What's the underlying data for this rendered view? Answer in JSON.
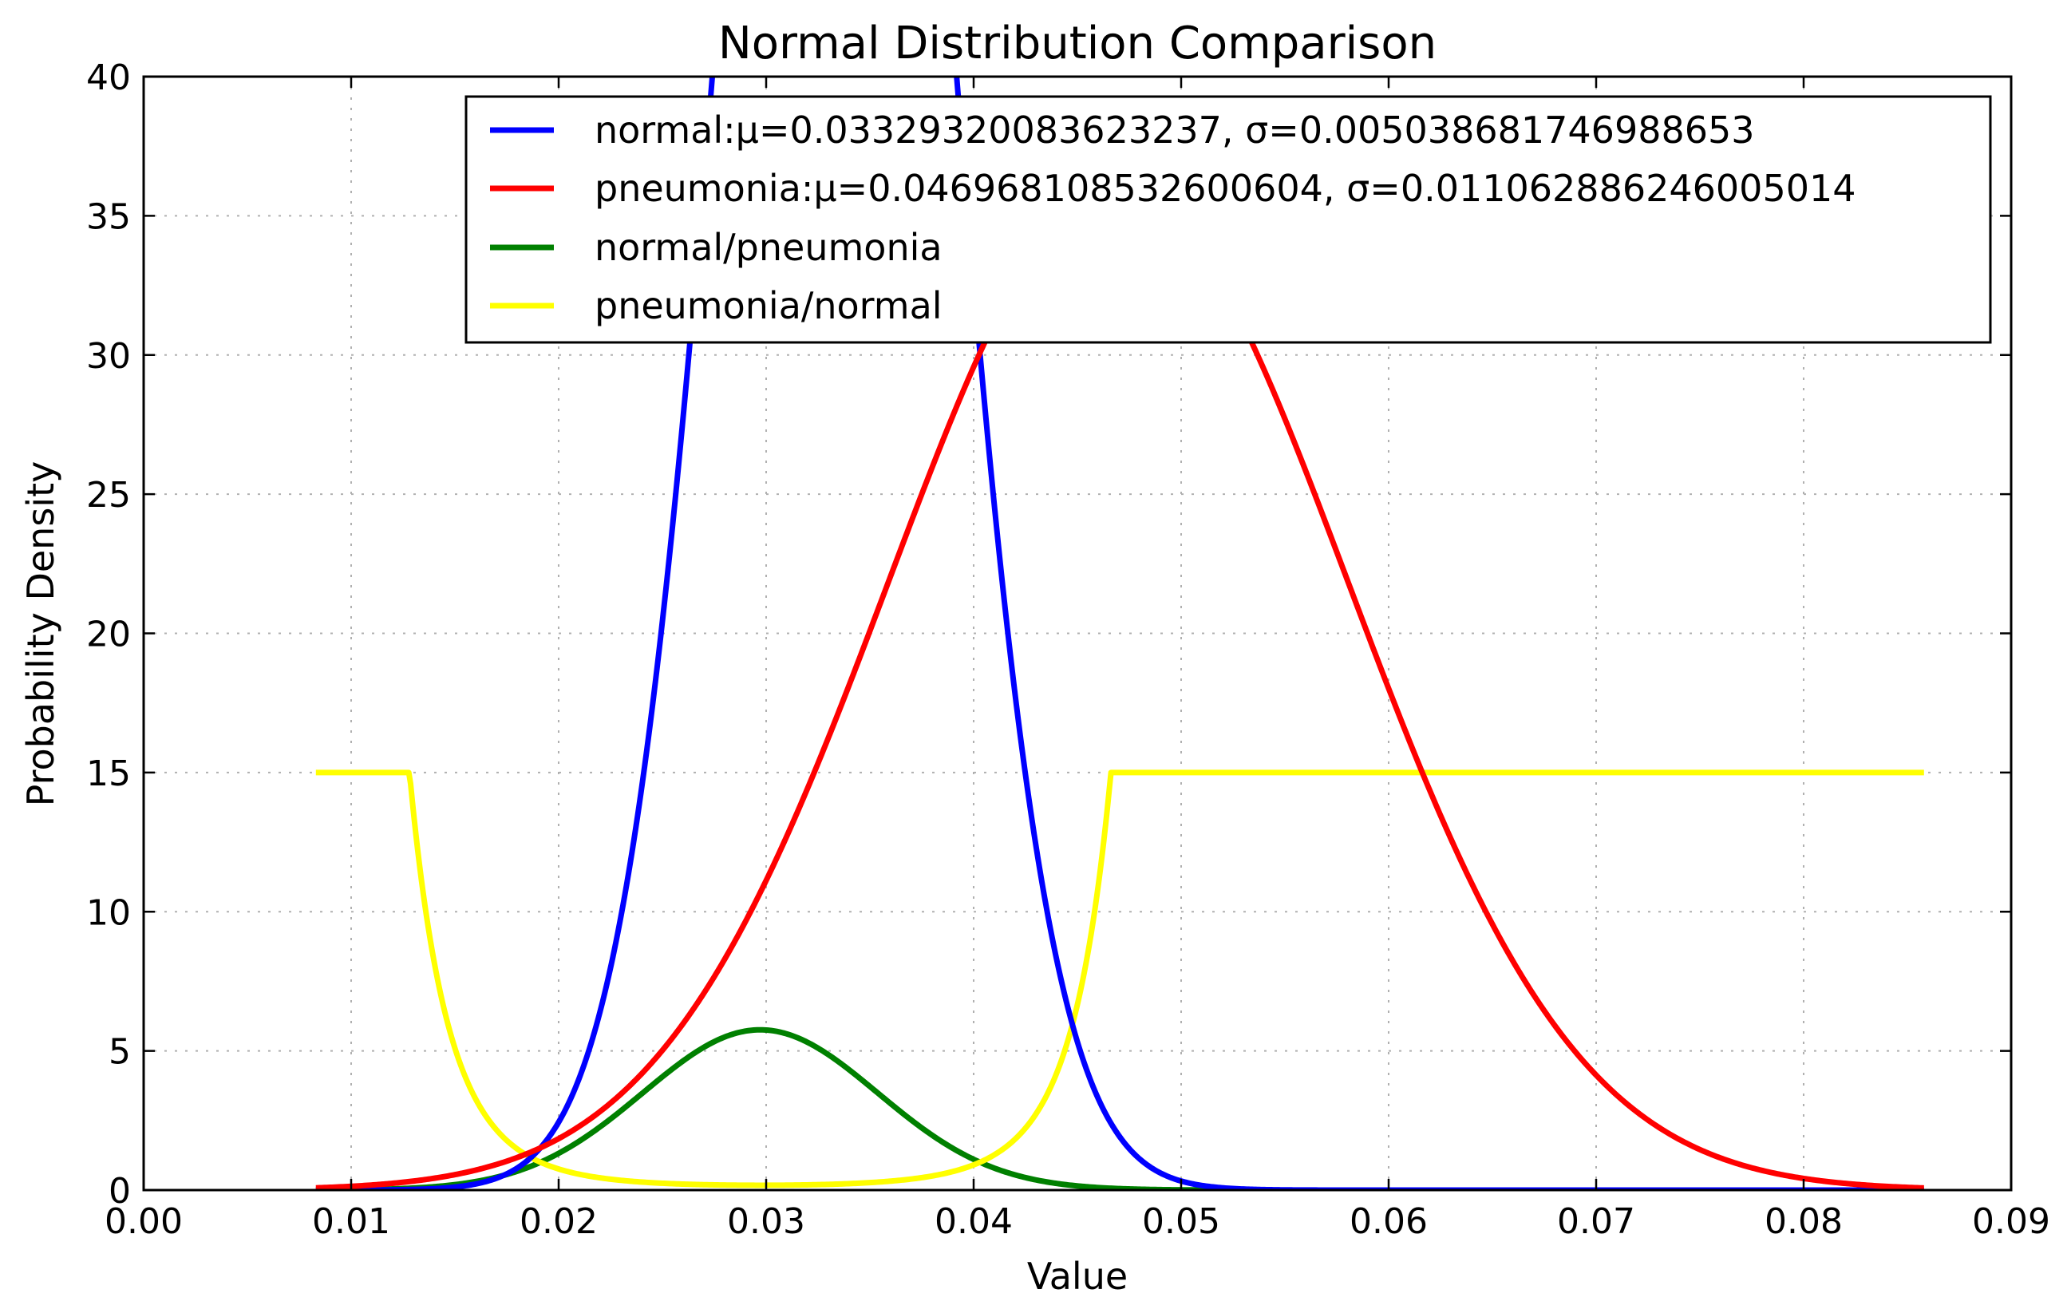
{
  "chart_data": {
    "type": "line",
    "title": "Normal Distribution Comparison",
    "xlabel": "Value",
    "ylabel": "Probability Density",
    "xlim": [
      0.0,
      0.09
    ],
    "ylim": [
      0,
      40
    ],
    "x_range_plotted": [
      0.0083,
      0.0858
    ],
    "xticks": [
      "0.00",
      "0.01",
      "0.02",
      "0.03",
      "0.04",
      "0.05",
      "0.06",
      "0.07",
      "0.08",
      "0.09"
    ],
    "yticks": [
      "0",
      "5",
      "10",
      "15",
      "20",
      "25",
      "30",
      "35",
      "40"
    ],
    "xtick_values": [
      0.0,
      0.01,
      0.02,
      0.03,
      0.04,
      0.05,
      0.06,
      0.07,
      0.08,
      0.09
    ],
    "ytick_values": [
      0,
      5,
      10,
      15,
      20,
      25,
      30,
      35,
      40
    ],
    "grid": true,
    "legend_position": "top-right",
    "series": [
      {
        "name": "normal:μ=0.03329320083623237, σ=0.005038681746988653",
        "color": "#0000ff",
        "mu": 0.03329320083623237,
        "sigma": 0.005038681746988653,
        "kind": "normal-pdf"
      },
      {
        "name": "pneumonia:μ=0.046968108532600604, σ=0.011062886246005014",
        "color": "#ff0000",
        "mu": 0.046968108532600604,
        "sigma": 0.011062886246005014,
        "kind": "normal-pdf"
      },
      {
        "name": "normal/pneumonia",
        "color": "#008000",
        "kind": "ratio-clipped-15",
        "peak_x": 0.0298,
        "peak_y": 4.7
      },
      {
        "name": "pneumonia/normal",
        "color": "#ffff00",
        "kind": "ratio-clipped-15",
        "clip_value": 15
      }
    ]
  }
}
